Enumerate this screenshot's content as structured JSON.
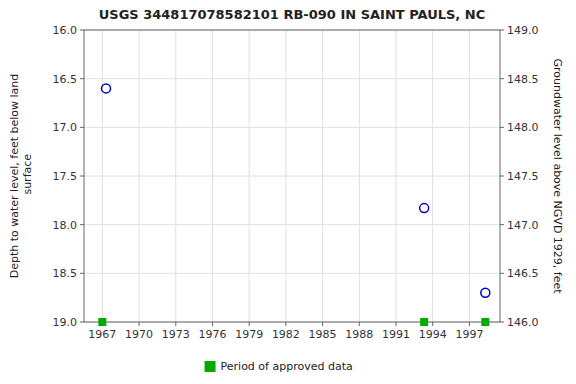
{
  "chart_data": {
    "type": "scatter",
    "title": "USGS 344817078582101 RB-090 IN SAINT PAULS, NC",
    "y_label": "Depth to water level, feet below land\n surface",
    "y2_label": "Groundwater level above NGVD 1929, feet",
    "xlim": [
      1965.5,
      1999.5
    ],
    "xticks": [
      1967,
      1970,
      1973,
      1976,
      1979,
      1982,
      1985,
      1988,
      1991,
      1994,
      1997
    ],
    "ylim": [
      19.0,
      16.0
    ],
    "yticks": [
      {
        "value": 16.0,
        "label": "16.0"
      },
      {
        "value": 16.5,
        "label": "16.5"
      },
      {
        "value": 17.0,
        "label": "17.0"
      },
      {
        "value": 17.5,
        "label": "17.5"
      },
      {
        "value": 18.0,
        "label": "18.0"
      },
      {
        "value": 18.5,
        "label": "18.5"
      },
      {
        "value": 19.0,
        "label": "19.0"
      }
    ],
    "y2lim": [
      146.0,
      149.0
    ],
    "y2ticks": [
      {
        "value": 149.0,
        "label": "149.0"
      },
      {
        "value": 148.5,
        "label": "148.5"
      },
      {
        "value": 148.0,
        "label": "148.0"
      },
      {
        "value": 147.5,
        "label": "147.5"
      },
      {
        "value": 147.0,
        "label": "147.0"
      },
      {
        "value": 146.5,
        "label": "146.5"
      },
      {
        "value": 146.0,
        "label": "146.0"
      }
    ],
    "grid": true,
    "legend": "bottom",
    "series": [
      {
        "x": [
          1967.3,
          1993.3,
          1998.3
        ],
        "values": [
          16.6,
          17.83,
          18.7
        ],
        "color": "#0000cc",
        "marker": "circle"
      },
      {
        "name": "Period of approved data",
        "x": [
          1967.0,
          1993.3,
          1998.3
        ],
        "values": [
          19.0,
          19.0,
          19.0
        ],
        "color": "#00aa00",
        "marker": "square"
      }
    ]
  }
}
